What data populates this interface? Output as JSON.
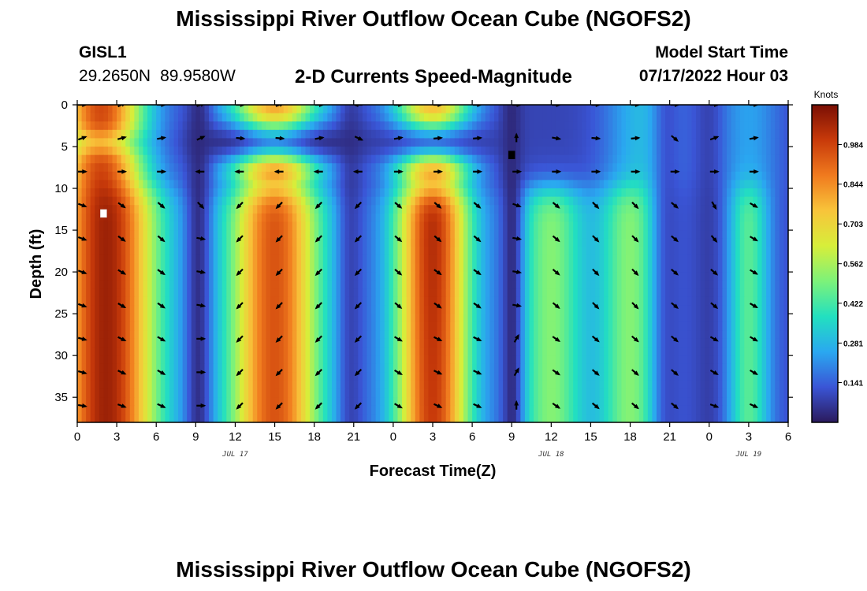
{
  "header": {
    "title": "Mississippi River Outflow Ocean Cube (NGOFS2)",
    "station": "GISL1",
    "lat": "29.2650N",
    "lon": "89.9580W",
    "subtitle": "2-D Currents Speed-Magnitude",
    "start_label": "Model Start Time",
    "start_value": "07/17/2022 Hour 03"
  },
  "footer": {
    "title": "Mississippi River Outflow Ocean Cube (NGOFS2)"
  },
  "chart_data": {
    "type": "heatmap",
    "xlabel": "Forecast Time(Z)",
    "ylabel": "Depth (ft)",
    "x_tick_labels": [
      "0",
      "3",
      "6",
      "9",
      "12",
      "15",
      "18",
      "21",
      "0",
      "3",
      "6",
      "9",
      "12",
      "15",
      "18",
      "21",
      "0",
      "3",
      "6"
    ],
    "x_range_hours": [
      0,
      54
    ],
    "date_labels": [
      {
        "text": "JUL 17",
        "at_hour": 12
      },
      {
        "text": "JUL 18",
        "at_hour": 36
      },
      {
        "text": "JUL 19",
        "at_hour": 51
      }
    ],
    "y_ticks": [
      0,
      5,
      10,
      15,
      20,
      25,
      30,
      35
    ],
    "y_range": [
      0,
      38
    ],
    "y_inverted": true,
    "colorbar": {
      "title": "Knots",
      "ticks": [
        "0.984",
        "0.844",
        "0.703",
        "0.562",
        "0.422",
        "0.281",
        "0.141"
      ],
      "tick_values": [
        0.984,
        0.844,
        0.703,
        0.562,
        0.422,
        0.281,
        0.141
      ],
      "range": [
        0.0,
        1.125
      ]
    },
    "colormap": [
      "#2b1a5c",
      "#3a55d6",
      "#2aa8f0",
      "#22e0c0",
      "#7cf27a",
      "#d7ee3a",
      "#f8c43a",
      "#f07a1e",
      "#c83a0a",
      "#7a0f04"
    ],
    "vector_hours": [
      0,
      3,
      6,
      9,
      12,
      15,
      18,
      21,
      24,
      27,
      30,
      33,
      36,
      39,
      42,
      45,
      48,
      51
    ],
    "vector_depths": [
      0,
      4,
      8,
      12,
      16,
      20,
      24,
      28,
      32,
      36
    ],
    "vector_dirs_deg": {
      "0": [
        [
          0,
          25,
          0,
          20,
          0,
          20,
          0,
          180,
          0,
          0,
          0,
          0,
          0,
          0,
          0,
          0,
          0,
          0
        ],
        [
          20,
          15,
          10,
          25,
          -5,
          -5,
          10,
          -25,
          10,
          5,
          5,
          90,
          -10,
          -5,
          5,
          -40,
          20,
          10
        ],
        [
          0,
          0,
          0,
          -180,
          180,
          180,
          180,
          180,
          0,
          0,
          0,
          0,
          0,
          0,
          0,
          0,
          0,
          0
        ]
      ],
      "12": [
        [
          -20,
          -35,
          -40,
          -45,
          -135,
          -135,
          -135,
          -135,
          -40,
          -40,
          -40,
          -20,
          -40,
          -45,
          -45,
          -40,
          -60,
          -30
        ]
      ],
      "16": [
        [
          -20,
          -35,
          -40,
          -10,
          -135,
          -135,
          -135,
          -135,
          -40,
          -40,
          -40,
          -10,
          -40,
          -45,
          -45,
          -40,
          -50,
          -30
        ]
      ],
      "20_36": [
        [
          -20,
          -30,
          -35,
          -10,
          -135,
          -135,
          -135,
          -135,
          -40,
          -35,
          -35,
          -10,
          -40,
          -45,
          -45,
          -40,
          -40,
          -30
        ],
        [
          -15,
          -25,
          -30,
          0,
          -135,
          -135,
          -135,
          -135,
          -30,
          -25,
          -25,
          60,
          -35,
          -40,
          -40,
          -40,
          -30,
          -30
        ],
        [
          -10,
          -20,
          -25,
          0,
          -135,
          -135,
          -135,
          -135,
          -30,
          -25,
          -25,
          90,
          -35,
          -40,
          -40,
          -40,
          -20,
          -25
        ]
      ]
    },
    "markers": [
      {
        "label": "max",
        "hour": 2,
        "depth": 13,
        "color": "#ffffff"
      },
      {
        "label": "min",
        "hour": 33,
        "depth": 6,
        "color": "#000000"
      }
    ]
  }
}
